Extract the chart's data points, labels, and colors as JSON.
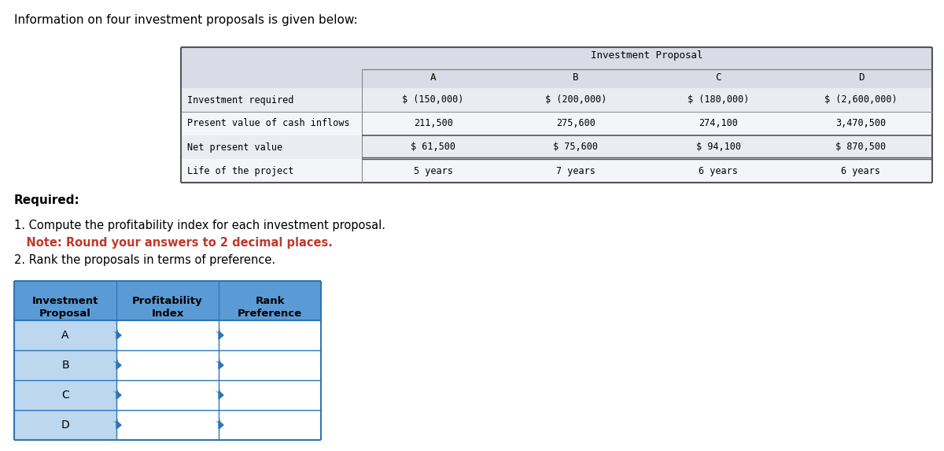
{
  "title": "Information on four investment proposals is given below:",
  "investment_proposal_label": "Investment Proposal",
  "proposals": [
    "A",
    "B",
    "C",
    "D"
  ],
  "row_labels": [
    "Investment required",
    "Present value of cash inflows",
    "Net present value",
    "Life of the project"
  ],
  "values": [
    [
      "$ (150,000)",
      "$ (200,000)",
      "$ (180,000)",
      "$ (2,600,000)"
    ],
    [
      "211,500",
      "275,600",
      "274,100",
      "3,470,500"
    ],
    [
      "$ 61,500",
      "$ 75,600",
      "$ 94,100",
      "$ 870,500"
    ],
    [
      "5 years",
      "7 years",
      "6 years",
      "6 years"
    ]
  ],
  "required_label": "Required:",
  "instruction1": "1. Compute the profitability index for each investment proposal.",
  "instruction1_note": "   Note: Round your answers to 2 decimal places.",
  "instruction2": "2. Rank the proposals in terms of preference.",
  "table2_header1": [
    "Investment",
    "Profitability",
    "Rank"
  ],
  "table2_header2": [
    "Proposal",
    "Index",
    "Preference"
  ],
  "table2_proposals": [
    "A",
    "B",
    "C",
    "D"
  ],
  "top_table_header_bg": "#d9dce6",
  "top_table_row_bg_even": "#e8eaf0",
  "top_table_row_bg_odd": "#f5f6f8",
  "bt_header_bg": "#5b9bd5",
  "bt_col1_bg": "#bdd7ee",
  "bt_col23_bg": "#ffffff",
  "bt_border": "#2e75b6",
  "note_color": "#c0392b",
  "line_color": "#888888",
  "thick_line_color": "#555555"
}
